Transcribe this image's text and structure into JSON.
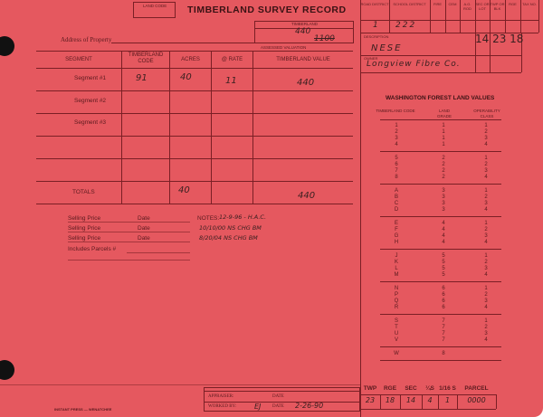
{
  "form": {
    "land_code_label": "LAND CODE",
    "title": "TIMBERLAND SURVEY RECORD",
    "timberland_label": "TIMBERLAND",
    "timberland_value": "440",
    "timberland_value_2": "1100",
    "address_label": "Address of Property",
    "assessed_valuation_label": "ASSESSED VALUATION",
    "footer_imprint": "INSTANT PRESS — WENATCHEE"
  },
  "segment_table": {
    "headers": [
      "SEGMENT",
      "TIMBERLAND CODE",
      "ACRES",
      "@ RATE",
      "TIMBERLAND VALUE"
    ],
    "rows": [
      {
        "segment": "Segment #1",
        "code": "91",
        "acres": "40",
        "rate": "11",
        "value": "440"
      },
      {
        "segment": "Segment #2",
        "code": "",
        "acres": "",
        "rate": "",
        "value": ""
      },
      {
        "segment": "Segment #3",
        "code": "",
        "acres": "",
        "rate": "",
        "value": ""
      }
    ],
    "totals": {
      "label": "TOTALS",
      "acres": "40",
      "value": "440"
    }
  },
  "sales": {
    "selling_price_label": "Selling Price",
    "date_label": "Date",
    "includes_parcels_label": "Includes Parcels #",
    "notes_label": "NOTES:",
    "notes": [
      "12-9-96 - H.A.C.",
      "10/10/00 NS CHG BM",
      "8/20/04 NS CHG BM"
    ]
  },
  "header_grid": {
    "headers": [
      "ROAD DISTRICT",
      "SCHOOL DISTRICT",
      "FIRE",
      "CEM",
      "A.G. ROD",
      "SEC OR LOT",
      "TWP OR BLK",
      "RGE",
      "TAX NO."
    ],
    "values": {
      "road_district": "1",
      "school_district": "222"
    },
    "description_label": "DESCRIPTION",
    "description": "NESE",
    "sec_twp_rge": "14 23 18",
    "owner_label": "OWNER",
    "owner": "Longview Fibre Co."
  },
  "values_table": {
    "title": "WASHINGTON FOREST LAND VALUES",
    "headers": [
      "TIMBERLAND CODE",
      "LAND GRADE",
      "OPERABILITY CLASS"
    ],
    "groups": [
      [
        [
          "1",
          "1",
          "1"
        ],
        [
          "2",
          "1",
          "2"
        ],
        [
          "3",
          "1",
          "3"
        ],
        [
          "4",
          "1",
          "4"
        ]
      ],
      [
        [
          "5",
          "2",
          "1"
        ],
        [
          "6",
          "2",
          "2"
        ],
        [
          "7",
          "2",
          "3"
        ],
        [
          "8",
          "2",
          "4"
        ]
      ],
      [
        [
          "A",
          "3",
          "1"
        ],
        [
          "B",
          "3",
          "2"
        ],
        [
          "C",
          "3",
          "3"
        ],
        [
          "D",
          "3",
          "4"
        ]
      ],
      [
        [
          "E",
          "4",
          "1"
        ],
        [
          "F",
          "4",
          "2"
        ],
        [
          "G",
          "4",
          "3"
        ],
        [
          "H",
          "4",
          "4"
        ]
      ],
      [
        [
          "J",
          "5",
          "1"
        ],
        [
          "K",
          "5",
          "2"
        ],
        [
          "L",
          "5",
          "3"
        ],
        [
          "M",
          "5",
          "4"
        ]
      ],
      [
        [
          "N",
          "6",
          "1"
        ],
        [
          "P",
          "6",
          "2"
        ],
        [
          "Q",
          "6",
          "3"
        ],
        [
          "R",
          "6",
          "4"
        ]
      ],
      [
        [
          "S",
          "7",
          "1"
        ],
        [
          "T",
          "7",
          "2"
        ],
        [
          "U",
          "7",
          "3"
        ],
        [
          "V",
          "7",
          "4"
        ]
      ],
      [
        [
          "W",
          "8",
          ""
        ]
      ]
    ]
  },
  "appraisal": {
    "appraiser_label": "APPRAISER:",
    "date_label": "DATE",
    "worked_by_label": "WORKED BY:",
    "worked_by": "EJ",
    "worked_date": "2-26-90"
  },
  "parcel": {
    "headers": [
      "TWP",
      "RGE",
      "SEC",
      "¼S",
      "1/16 S",
      "PARCEL"
    ],
    "values": [
      "23",
      "18",
      "14",
      "4",
      "1",
      "0000"
    ]
  }
}
